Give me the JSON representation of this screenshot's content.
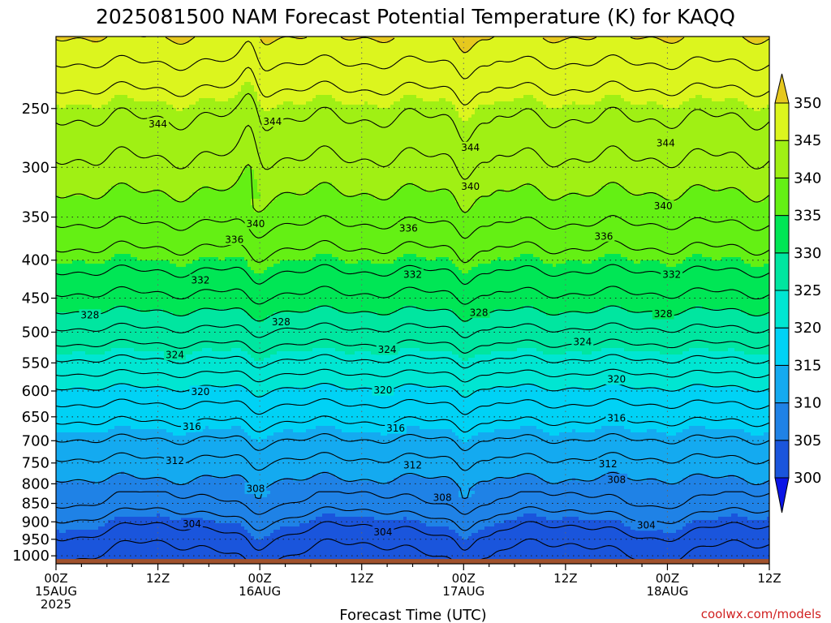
{
  "chart_data": {
    "type": "heatmap",
    "title": "2025081500 NAM Forecast Potential Temperature (K) for KAQQ",
    "xlabel": "Forecast Time (UTC)",
    "ylabel": "",
    "x_ticks": [
      {
        "hour": 0,
        "lines": [
          "00Z",
          "15AUG",
          "2025"
        ]
      },
      {
        "hour": 12,
        "lines": [
          "12Z"
        ]
      },
      {
        "hour": 24,
        "lines": [
          "00Z",
          "16AUG"
        ]
      },
      {
        "hour": 36,
        "lines": [
          "12Z"
        ]
      },
      {
        "hour": 48,
        "lines": [
          "00Z",
          "17AUG"
        ]
      },
      {
        "hour": 60,
        "lines": [
          "12Z"
        ]
      },
      {
        "hour": 72,
        "lines": [
          "00Z",
          "18AUG"
        ]
      },
      {
        "hour": 84,
        "lines": [
          "12Z"
        ]
      }
    ],
    "xlim_hours": [
      0,
      84
    ],
    "y_ticks": [
      250,
      300,
      350,
      400,
      450,
      500,
      550,
      600,
      650,
      700,
      750,
      800,
      850,
      900,
      950,
      1000
    ],
    "ylim_hPa": [
      200,
      1025
    ],
    "y_scale": "log-pressure",
    "grid": true,
    "colorbar": {
      "levels": [
        300,
        305,
        310,
        315,
        320,
        325,
        330,
        335,
        340,
        345,
        350
      ],
      "labels": [
        "300",
        "305",
        "310",
        "315",
        "320",
        "325",
        "330",
        "335",
        "340",
        "345",
        "350"
      ],
      "colors": [
        "#0a14e6",
        "#1a55dc",
        "#1f82e6",
        "#14aaf0",
        "#00d2f5",
        "#00e6d2",
        "#00e6a0",
        "#00e655",
        "#64f014",
        "#a0f014",
        "#dcf51e",
        "#f5f500",
        "#e6c81e"
      ],
      "extend": "both",
      "placement": "right"
    },
    "profile": {
      "pressure_hPa": [
        1000,
        950,
        900,
        850,
        800,
        750,
        700,
        650,
        600,
        550,
        500,
        450,
        400,
        350,
        300,
        250,
        200
      ],
      "theta_K": [
        301.5,
        303,
        305,
        307.5,
        309.5,
        311.5,
        313.8,
        316.5,
        319.5,
        323.5,
        327.5,
        331.5,
        335,
        338.5,
        341.5,
        344.5,
        350
      ]
    },
    "contour_labels": [
      {
        "value": "344",
        "hour": 12,
        "hPa": 262
      },
      {
        "value": "344",
        "hour": 25.5,
        "hPa": 260
      },
      {
        "value": "344",
        "hour": 48.8,
        "hPa": 282
      },
      {
        "value": "344",
        "hour": 71.8,
        "hPa": 278
      },
      {
        "value": "340",
        "hour": 48.8,
        "hPa": 318
      },
      {
        "value": "340",
        "hour": 71.5,
        "hPa": 338
      },
      {
        "value": "340",
        "hour": 23.5,
        "hPa": 357
      },
      {
        "value": "336",
        "hour": 21,
        "hPa": 375
      },
      {
        "value": "336",
        "hour": 41.5,
        "hPa": 362
      },
      {
        "value": "336",
        "hour": 64.5,
        "hPa": 371
      },
      {
        "value": "332",
        "hour": 17,
        "hPa": 425
      },
      {
        "value": "332",
        "hour": 42,
        "hPa": 418
      },
      {
        "value": "332",
        "hour": 72.5,
        "hPa": 418
      },
      {
        "value": "328",
        "hour": 4,
        "hPa": 474
      },
      {
        "value": "328",
        "hour": 26.5,
        "hPa": 484
      },
      {
        "value": "328",
        "hour": 49.8,
        "hPa": 470
      },
      {
        "value": "328",
        "hour": 71.5,
        "hPa": 472
      },
      {
        "value": "324",
        "hour": 14,
        "hPa": 536
      },
      {
        "value": "324",
        "hour": 39,
        "hPa": 527
      },
      {
        "value": "324",
        "hour": 62,
        "hPa": 515
      },
      {
        "value": "320",
        "hour": 17,
        "hPa": 601
      },
      {
        "value": "320",
        "hour": 38.5,
        "hPa": 598
      },
      {
        "value": "320",
        "hour": 66,
        "hPa": 578
      },
      {
        "value": "316",
        "hour": 16,
        "hPa": 669
      },
      {
        "value": "316",
        "hour": 40,
        "hPa": 673
      },
      {
        "value": "316",
        "hour": 66,
        "hPa": 652
      },
      {
        "value": "312",
        "hour": 14,
        "hPa": 744
      },
      {
        "value": "312",
        "hour": 42,
        "hPa": 754
      },
      {
        "value": "312",
        "hour": 65,
        "hPa": 751
      },
      {
        "value": "308",
        "hour": 23.5,
        "hPa": 811
      },
      {
        "value": "308",
        "hour": 45.5,
        "hPa": 834
      },
      {
        "value": "308",
        "hour": 66,
        "hPa": 789
      },
      {
        "value": "304",
        "hour": 16,
        "hPa": 905
      },
      {
        "value": "304",
        "hour": 38.5,
        "hPa": 928
      },
      {
        "value": "304",
        "hour": 69.5,
        "hPa": 909
      }
    ]
  },
  "credit": "coolwx.com/models"
}
